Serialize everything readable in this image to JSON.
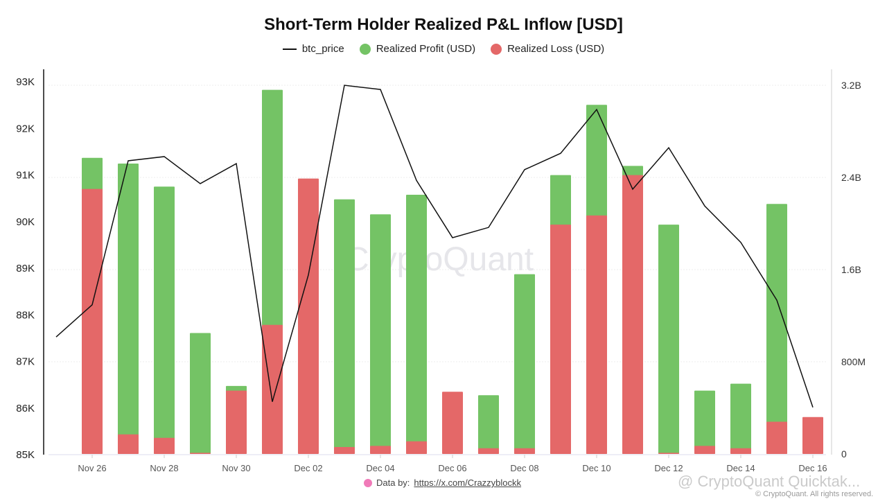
{
  "chart_data": {
    "type": "bar",
    "title": "Short-Term Holder Realized P&L Inflow [USD]",
    "legend": [
      "btc_price",
      "Realized Profit (USD)",
      "Realized Loss (USD)"
    ],
    "legend_placement": "top-center",
    "colors": {
      "btc_price": "#111111",
      "profit": "#74c365",
      "loss": "#e46868"
    },
    "x_tick_labels": [
      "Nov 26",
      "Nov 28",
      "Nov 30",
      "Dec 02",
      "Dec 04",
      "Dec 06",
      "Dec 08",
      "Dec 10",
      "Dec 12",
      "Dec 14",
      "Dec 16"
    ],
    "left_axis": {
      "ticks": [
        "85K",
        "86K",
        "87K",
        "88K",
        "89K",
        "90K",
        "91K",
        "92K",
        "93K"
      ],
      "range": [
        85000,
        93000
      ]
    },
    "right_axis": {
      "ticks": [
        "0",
        "800M",
        "1.6B",
        "2.4B",
        "3.2B"
      ],
      "range": [
        0,
        3.2
      ]
    },
    "grid": true,
    "bar_dates": [
      "Nov 26",
      "Nov 27",
      "Nov 28",
      "Nov 29",
      "Nov 30",
      "Dec 01",
      "Dec 02",
      "Dec 03",
      "Dec 04",
      "Dec 05",
      "Dec 06",
      "Dec 07",
      "Dec 08",
      "Dec 09",
      "Dec 10",
      "Dec 11",
      "Dec 12",
      "Dec 13",
      "Dec 14",
      "Dec 15",
      "Dec 16"
    ],
    "series": [
      {
        "name": "Realized Profit (USD)",
        "unit": "B",
        "values": [
          2.57,
          2.52,
          2.32,
          1.05,
          0.59,
          3.16,
          0,
          2.21,
          2.08,
          2.25,
          0,
          0.51,
          1.56,
          2.42,
          3.03,
          2.5,
          1.99,
          0.55,
          0.61,
          2.17,
          0
        ]
      },
      {
        "name": "Realized Loss (USD)",
        "unit": "B",
        "values": [
          2.3,
          0.17,
          0.14,
          0.01,
          0.55,
          1.12,
          2.39,
          0.06,
          0.07,
          0.11,
          0.54,
          0.05,
          0.05,
          1.99,
          2.07,
          2.42,
          0.01,
          0.07,
          0.05,
          0.28,
          0.32
        ]
      },
      {
        "name": "btc_price",
        "dates": [
          "Nov 25",
          "Nov 26",
          "Nov 27",
          "Nov 28",
          "Nov 29",
          "Nov 30",
          "Dec 01",
          "Dec 02",
          "Dec 03",
          "Dec 04",
          "Dec 05",
          "Dec 06",
          "Dec 07",
          "Dec 08",
          "Dec 09",
          "Dec 10",
          "Dec 11",
          "Dec 12",
          "Dec 13",
          "Dec 14",
          "Dec 15",
          "Dec 16"
        ],
        "values": [
          87510,
          88200,
          91290,
          91380,
          90800,
          91230,
          86120,
          88840,
          92910,
          92820,
          90870,
          89640,
          89860,
          91100,
          91450,
          92390,
          90680,
          91570,
          90320,
          89540,
          88300,
          86000
        ]
      }
    ]
  },
  "watermark": "CryptoQuant",
  "footer": {
    "data_by": "Data by:",
    "link": "https://x.com/Crazzyblockk",
    "copyright": "© CryptoQuant. All rights reserved.",
    "overlay_watermark": "@ CryptoQuant Quicktak..."
  }
}
